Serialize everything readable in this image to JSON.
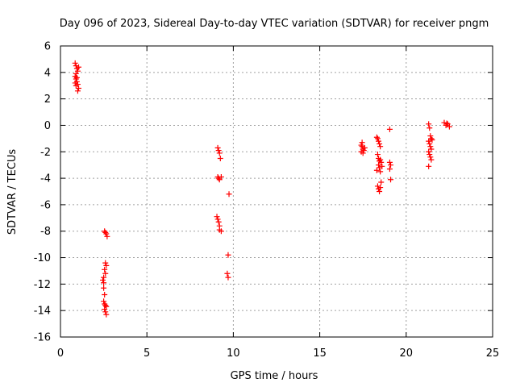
{
  "chart_data": {
    "type": "scatter",
    "title": "Day 096 of 2023, Sidereal Day-to-day VTEC variation (SDTVAR) for receiver pngm",
    "xlabel": "GPS time / hours",
    "ylabel": "SDTVAR / TECUs",
    "xlim": [
      0,
      25
    ],
    "ylim": [
      -16,
      6
    ],
    "xticks": [
      "0",
      "5",
      "10",
      "15",
      "20",
      "25"
    ],
    "yticks": [
      "6",
      "4",
      "2",
      "0",
      "-2",
      "-4",
      "-6",
      "-8",
      "-10",
      "-12",
      "-14",
      "-16"
    ],
    "grid": true,
    "marker": "plus",
    "color": "#ff0000",
    "series": [
      {
        "name": "SDTVAR",
        "points": [
          [
            0.85,
            4.7
          ],
          [
            0.9,
            4.5
          ],
          [
            0.95,
            4.3
          ],
          [
            1.0,
            4.1
          ],
          [
            0.9,
            3.9
          ],
          [
            0.85,
            3.7
          ],
          [
            0.9,
            3.5
          ],
          [
            0.95,
            3.3
          ],
          [
            1.0,
            3.1
          ],
          [
            0.9,
            3.0
          ],
          [
            1.05,
            2.8
          ],
          [
            1.0,
            2.6
          ],
          [
            0.95,
            3.6
          ],
          [
            0.85,
            3.2
          ],
          [
            1.05,
            4.4
          ],
          [
            2.55,
            -8.0
          ],
          [
            2.6,
            -8.1
          ],
          [
            2.65,
            -8.2
          ],
          [
            2.7,
            -8.4
          ],
          [
            2.6,
            -10.4
          ],
          [
            2.65,
            -10.6
          ],
          [
            2.55,
            -10.9
          ],
          [
            2.6,
            -11.2
          ],
          [
            2.5,
            -11.5
          ],
          [
            2.45,
            -11.7
          ],
          [
            2.5,
            -11.9
          ],
          [
            2.5,
            -12.3
          ],
          [
            2.55,
            -12.8
          ],
          [
            2.5,
            -13.3
          ],
          [
            2.55,
            -13.5
          ],
          [
            2.6,
            -13.6
          ],
          [
            2.65,
            -13.7
          ],
          [
            2.55,
            -13.9
          ],
          [
            2.6,
            -14.1
          ],
          [
            2.65,
            -14.3
          ],
          [
            9.1,
            -1.7
          ],
          [
            9.15,
            -1.9
          ],
          [
            9.2,
            -2.1
          ],
          [
            9.25,
            -2.5
          ],
          [
            9.1,
            -3.9
          ],
          [
            9.15,
            -4.0
          ],
          [
            9.2,
            -4.1
          ],
          [
            9.3,
            -3.9
          ],
          [
            9.05,
            -6.9
          ],
          [
            9.1,
            -7.1
          ],
          [
            9.15,
            -7.3
          ],
          [
            9.2,
            -7.6
          ],
          [
            9.2,
            -7.9
          ],
          [
            9.3,
            -8.0
          ],
          [
            9.75,
            -5.2
          ],
          [
            9.7,
            -9.8
          ],
          [
            9.65,
            -11.2
          ],
          [
            9.7,
            -11.5
          ],
          [
            17.4,
            -1.5
          ],
          [
            17.45,
            -1.6
          ],
          [
            17.5,
            -1.8
          ],
          [
            17.55,
            -1.9
          ],
          [
            17.4,
            -2.0
          ],
          [
            17.5,
            -2.1
          ],
          [
            17.45,
            -1.3
          ],
          [
            17.6,
            -1.7
          ],
          [
            18.3,
            -0.9
          ],
          [
            18.35,
            -1.0
          ],
          [
            18.4,
            -1.2
          ],
          [
            18.45,
            -1.4
          ],
          [
            18.5,
            -1.6
          ],
          [
            18.35,
            -2.2
          ],
          [
            18.4,
            -2.5
          ],
          [
            18.45,
            -2.7
          ],
          [
            18.5,
            -2.6
          ],
          [
            18.55,
            -2.8
          ],
          [
            18.4,
            -3.0
          ],
          [
            18.45,
            -3.2
          ],
          [
            18.5,
            -3.5
          ],
          [
            18.3,
            -3.4
          ],
          [
            18.6,
            -3.1
          ],
          [
            18.35,
            -4.6
          ],
          [
            18.4,
            -4.8
          ],
          [
            18.45,
            -5.0
          ],
          [
            18.5,
            -4.7
          ],
          [
            18.55,
            -4.3
          ],
          [
            19.05,
            -0.3
          ],
          [
            19.05,
            -2.8
          ],
          [
            19.1,
            -3.0
          ],
          [
            19.05,
            -3.3
          ],
          [
            19.1,
            -4.1
          ],
          [
            21.3,
            0.1
          ],
          [
            21.35,
            -0.2
          ],
          [
            21.4,
            -0.8
          ],
          [
            21.45,
            -1.0
          ],
          [
            21.3,
            -1.2
          ],
          [
            21.35,
            -1.4
          ],
          [
            21.4,
            -1.6
          ],
          [
            21.45,
            -1.8
          ],
          [
            21.3,
            -2.0
          ],
          [
            21.35,
            -2.2
          ],
          [
            21.4,
            -2.4
          ],
          [
            21.45,
            -2.6
          ],
          [
            21.3,
            -3.1
          ],
          [
            21.5,
            -1.1
          ],
          [
            22.2,
            0.2
          ],
          [
            22.3,
            0.0
          ],
          [
            22.4,
            0.1
          ],
          [
            22.5,
            -0.1
          ],
          [
            22.35,
            0.15
          ]
        ]
      }
    ]
  }
}
